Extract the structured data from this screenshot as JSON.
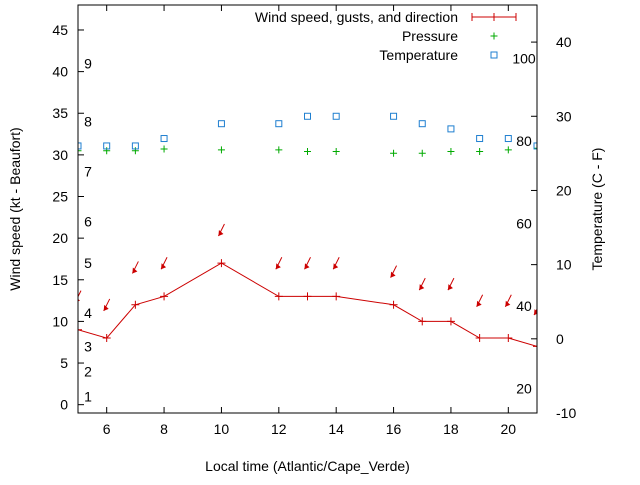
{
  "chart_data": {
    "type": "line",
    "xlabel": "Local time (Atlantic/Cape_Verde)",
    "ylabel": "Wind speed (kt - Beaufort)",
    "y2label": "Temperature (C - F)",
    "xlim": [
      5,
      21
    ],
    "ylim": [
      -1,
      48
    ],
    "y2lim": [
      -10,
      45
    ],
    "x_ticks": [
      6,
      8,
      10,
      12,
      14,
      16,
      18,
      20
    ],
    "y_ticks": [
      0,
      5,
      10,
      15,
      20,
      25,
      30,
      35,
      40,
      45
    ],
    "y2_ticks": [
      -10,
      0,
      10,
      20,
      30,
      40
    ],
    "beaufort_labels": [
      {
        "label": "1",
        "value": 1
      },
      {
        "label": "2",
        "value": 4
      },
      {
        "label": "3",
        "value": 7
      },
      {
        "label": "4",
        "value": 11
      },
      {
        "label": "5",
        "value": 17
      },
      {
        "label": "6",
        "value": 22
      },
      {
        "label": "7",
        "value": 28
      },
      {
        "label": "8",
        "value": 34
      },
      {
        "label": "9",
        "value": 41
      }
    ],
    "fahrenheit_labels": [
      {
        "label": "20",
        "value": 20
      },
      {
        "label": "40",
        "value": 40
      },
      {
        "label": "60",
        "value": 60
      },
      {
        "label": "80",
        "value": 80
      },
      {
        "label": "100",
        "value": 100
      }
    ],
    "legend_placement": "top-right",
    "grid": false,
    "series": [
      {
        "name": "Wind speed, gusts, and direction",
        "color": "#cc0000",
        "axis": "left",
        "style": "line-points",
        "x": [
          5,
          6,
          7,
          8,
          10,
          12,
          13,
          14,
          16,
          17,
          18,
          19,
          20,
          21
        ],
        "values": [
          9,
          8,
          12,
          13,
          17,
          13,
          13,
          13,
          12,
          10,
          10,
          8,
          8,
          7
        ],
        "gusts": [
          12.5,
          11.5,
          16,
          16.5,
          20.5,
          16.5,
          16.5,
          16.5,
          15.5,
          14,
          14,
          12,
          12,
          11
        ],
        "gust_arrow_direction": "toward lower-left"
      },
      {
        "name": "Pressure",
        "color": "#00aa00",
        "axis": "left",
        "style": "points",
        "marker": "plus",
        "x": [
          5,
          6,
          7,
          8,
          10,
          12,
          13,
          14,
          16,
          17,
          18,
          19,
          20,
          21
        ],
        "values": [
          30.5,
          30.5,
          30.5,
          30.7,
          30.6,
          30.6,
          30.4,
          30.4,
          30.2,
          30.2,
          30.4,
          30.4,
          30.6,
          30.8
        ]
      },
      {
        "name": "Temperature",
        "color": "#1f7fd0",
        "axis": "right",
        "style": "points",
        "marker": "square",
        "x": [
          5,
          6,
          7,
          8,
          10,
          12,
          13,
          14,
          16,
          17,
          18,
          19,
          20,
          21
        ],
        "values": [
          26,
          26,
          26,
          27,
          29,
          29,
          30,
          30,
          30,
          29,
          28.3,
          27,
          27,
          26
        ]
      }
    ]
  }
}
